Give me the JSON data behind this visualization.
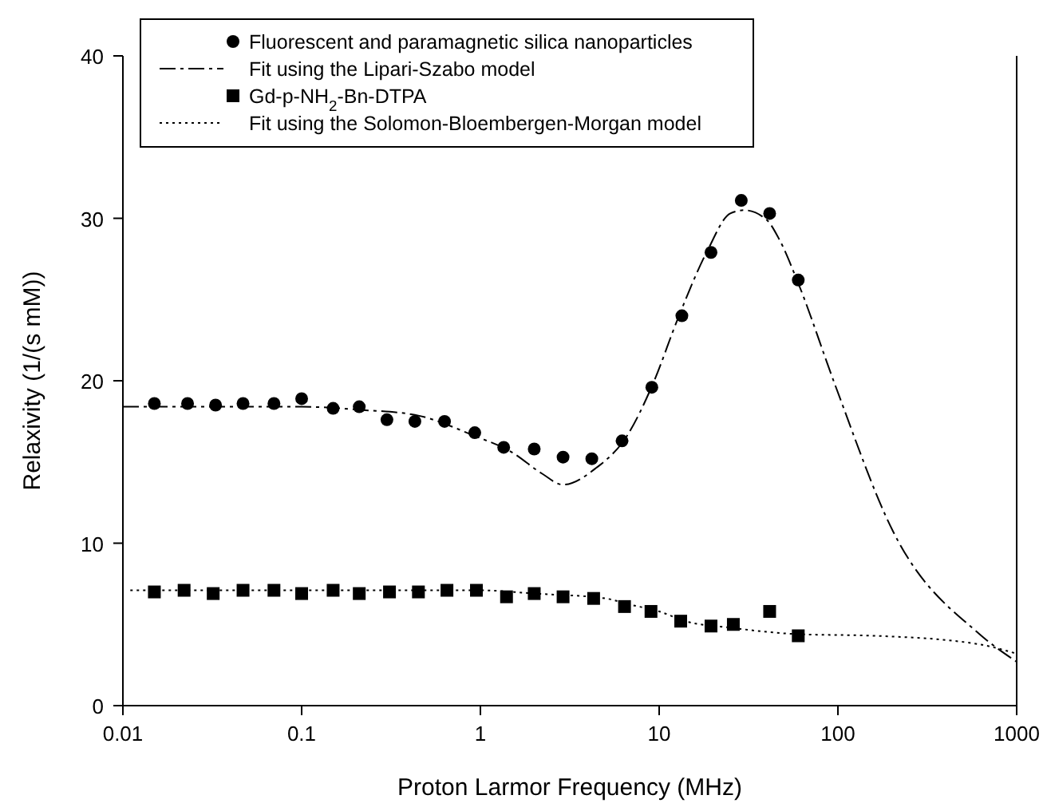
{
  "chart_data": {
    "type": "scatter",
    "xlabel": "Proton Larmor Frequency (MHz)",
    "ylabel": "Relaxivity (1/(s mM))",
    "log": "x",
    "xlim": [
      0.01,
      1000
    ],
    "xticks": [
      0.01,
      0.1,
      1,
      10,
      100,
      1000
    ],
    "ylim": [
      0,
      40
    ],
    "yticks": [
      0,
      10,
      20,
      30,
      40
    ],
    "grid": false,
    "legend": "top",
    "series": [
      {
        "name": "Fluorescent and paramagnetic silica nanoparticles",
        "marker": "circle",
        "color": "#000000",
        "x": [
          0.015,
          0.023,
          0.033,
          0.047,
          0.07,
          0.1,
          0.15,
          0.21,
          0.3,
          0.43,
          0.63,
          0.93,
          1.35,
          2.0,
          2.9,
          4.2,
          6.2,
          9.1,
          13.4,
          19.5,
          28.8,
          41.5,
          60
        ],
        "values": [
          18.6,
          18.6,
          18.5,
          18.6,
          18.6,
          18.9,
          18.3,
          18.4,
          17.6,
          17.5,
          17.5,
          16.8,
          15.9,
          15.8,
          15.3,
          15.2,
          16.3,
          19.6,
          24.0,
          27.9,
          31.1,
          30.3,
          26.2
        ]
      },
      {
        "name": "Fit using the Lipari-Szabo model",
        "type": "line",
        "line_style": "dashed",
        "color": "#000000",
        "x": [
          0.01,
          0.1,
          0.22,
          0.43,
          0.93,
          1.5,
          2.2,
          2.9,
          4.4,
          6.6,
          9.3,
          12.7,
          18.6,
          25,
          30,
          40,
          47,
          60,
          96,
          204,
          620,
          1000
        ],
        "values": [
          18.4,
          18.4,
          18.2,
          17.9,
          16.6,
          15.6,
          14.3,
          13.6,
          14.6,
          16.6,
          19.9,
          23.8,
          28.0,
          30.3,
          30.5,
          29.9,
          28.7,
          26.0,
          19.8,
          10.7,
          4.4,
          2.7
        ]
      },
      {
        "name": "Gd-p-NH$_{2}$-Bn-DTPA",
        "marker": "square",
        "color": "#000000",
        "x": [
          0.015,
          0.022,
          0.032,
          0.047,
          0.07,
          0.1,
          0.15,
          0.21,
          0.31,
          0.45,
          0.65,
          0.95,
          1.4,
          2.0,
          2.9,
          4.3,
          6.4,
          9.0,
          13.2,
          19.5,
          26,
          41.5,
          60
        ],
        "values": [
          7.0,
          7.1,
          6.9,
          7.1,
          7.1,
          6.9,
          7.1,
          6.9,
          7.0,
          7.0,
          7.1,
          7.1,
          6.7,
          6.9,
          6.7,
          6.6,
          6.1,
          5.8,
          5.2,
          4.9,
          5.0,
          5.8,
          4.3
        ]
      },
      {
        "name": "Fit using the Solomon-Bloembergen-Morgan model",
        "type": "line",
        "line_style": "dotted",
        "color": "#000000",
        "x": [
          0.011,
          0.1,
          1,
          2,
          5,
          7,
          10,
          14,
          25,
          60,
          160,
          600,
          1000
        ],
        "values": [
          7.1,
          7.1,
          7.1,
          6.9,
          6.6,
          6.2,
          5.8,
          5.2,
          4.8,
          4.4,
          4.3,
          3.8,
          3.2
        ]
      }
    ]
  }
}
